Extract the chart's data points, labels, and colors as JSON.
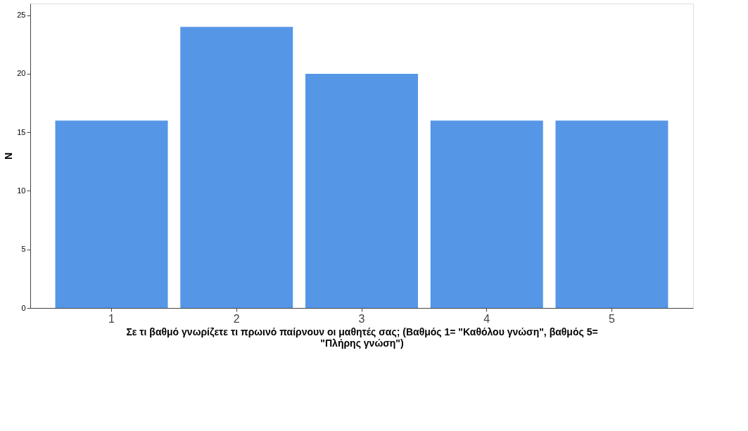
{
  "chart_data": {
    "type": "bar",
    "categories": [
      "1",
      "2",
      "3",
      "4",
      "5"
    ],
    "values": [
      16,
      24,
      20,
      16,
      16
    ],
    "color": "#5596e6",
    "xlabel": "Σε τι βαθμό γνωρίζετε τι πρωινό παίρνουν οι μαθητές σας; (Βαθμός 1= \"Καθόλου γνώση\", βαθμός 5= \"Πλήρης γνώση\")",
    "ylabel": "N",
    "ylim": [
      0,
      26
    ],
    "yticks": [
      0,
      5,
      10,
      15,
      20,
      25
    ],
    "grid": false
  }
}
